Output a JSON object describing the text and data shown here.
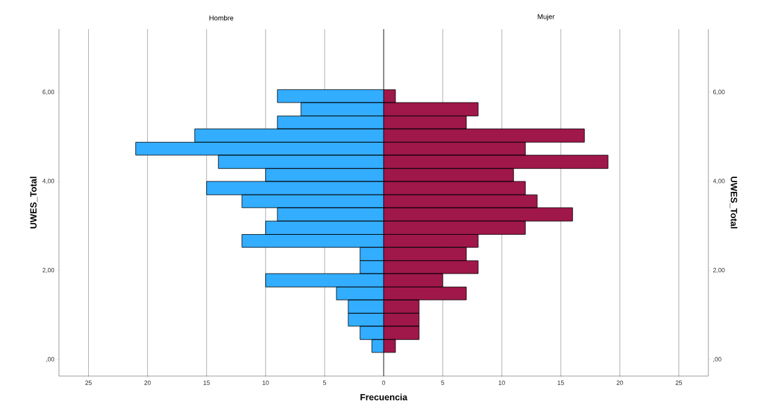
{
  "chart_data": [
    {
      "type": "histogram",
      "orientation": "horizontal",
      "title": "Hombre",
      "xlabel": "Frecuencia",
      "ylabel": "UWES_Total",
      "color": "#33adff",
      "grid": "x",
      "bins": [
        0.16,
        0.45,
        0.75,
        1.04,
        1.34,
        1.63,
        1.93,
        2.22,
        2.52,
        2.81,
        3.11,
        3.41,
        3.7,
        4.0,
        4.29,
        4.59,
        4.88,
        5.18,
        5.47,
        5.77,
        6.06
      ],
      "values": [
        1,
        2,
        3,
        3,
        4,
        10,
        2,
        2,
        12,
        10,
        9,
        12,
        15,
        10,
        14,
        21,
        16,
        9,
        7,
        9
      ],
      "xlim": [
        27.5,
        0
      ],
      "xticks": [
        25,
        20,
        15,
        10,
        5,
        0
      ],
      "ylim": [
        -0.37,
        7.42
      ],
      "yticks": [
        {
          "value": 0,
          "label": ",00"
        },
        {
          "value": 2,
          "label": "2,00"
        },
        {
          "value": 4,
          "label": "4,00"
        },
        {
          "value": 6,
          "label": "6,00"
        }
      ]
    },
    {
      "type": "histogram",
      "orientation": "horizontal",
      "title": "Mujer",
      "ylabel": "UWES_Total",
      "color": "#a0174a",
      "grid": "x",
      "bins": [
        0.16,
        0.45,
        0.75,
        1.04,
        1.34,
        1.63,
        1.93,
        2.22,
        2.52,
        2.81,
        3.11,
        3.41,
        3.7,
        4.0,
        4.29,
        4.59,
        4.88,
        5.18,
        5.47,
        5.77,
        6.06
      ],
      "values": [
        1,
        3,
        3,
        3,
        7,
        5,
        8,
        7,
        8,
        12,
        16,
        13,
        12,
        11,
        19,
        12,
        17,
        7,
        8,
        1
      ],
      "xlim": [
        0,
        27.5
      ],
      "xticks": [
        5,
        10,
        15,
        20,
        25
      ],
      "ylim": [
        -0.37,
        7.42
      ],
      "yticks": [
        {
          "value": 0,
          "label": ",00"
        },
        {
          "value": 2,
          "label": "2,00"
        },
        {
          "value": 4,
          "label": "4,00"
        },
        {
          "value": 6,
          "label": "6,00"
        }
      ]
    }
  ]
}
